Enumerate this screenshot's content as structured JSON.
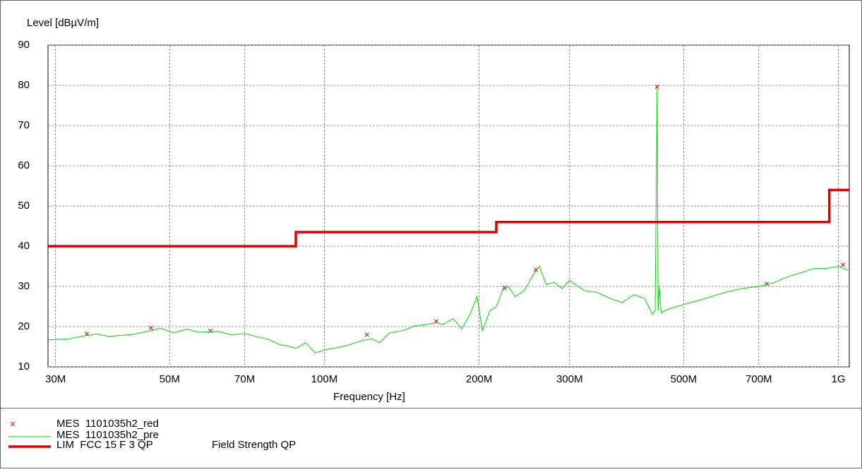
{
  "chart_data": {
    "type": "line",
    "y_label": "Level [dBµV/m]",
    "x_label": "Frequency [Hz]",
    "x_log": true,
    "grid": true,
    "xlim": [
      29000000,
      1050000000
    ],
    "ylim": [
      10,
      90
    ],
    "yticks": [
      10,
      20,
      30,
      40,
      50,
      60,
      70,
      80,
      90
    ],
    "xticks": [
      {
        "value": 30000000,
        "label": "30M"
      },
      {
        "value": 50000000,
        "label": "50M"
      },
      {
        "value": 70000000,
        "label": "70M"
      },
      {
        "value": 100000000,
        "label": "100M"
      },
      {
        "value": 200000000,
        "label": "200M"
      },
      {
        "value": 300000000,
        "label": "300M"
      },
      {
        "value": 500000000,
        "label": "500M"
      },
      {
        "value": 700000000,
        "label": "700M"
      },
      {
        "value": 1000000000,
        "label": "1G"
      }
    ],
    "legend_note": "Field Strength QP",
    "series": [
      {
        "name": "MES  1101035h2_red",
        "color": "#e00000",
        "marker": "x",
        "x": [
          34500000,
          46000000,
          60000000,
          121000000,
          165000000,
          224000000,
          258000000,
          444000000,
          725000000,
          1021000000
        ],
        "values": [
          18,
          19.5,
          18.8,
          17.8,
          21.2,
          29.5,
          34,
          79.5,
          30.5,
          35.2
        ]
      },
      {
        "name": "MES  1101035h2_pre",
        "color": "#00d800",
        "marker": "line",
        "x": [
          29000000,
          32000000,
          34000000,
          36000000,
          38000000,
          42000000,
          46000000,
          48000000,
          51000000,
          54000000,
          57000000,
          62000000,
          66000000,
          70000000,
          74000000,
          78000000,
          82000000,
          85000000,
          88000000,
          92000000,
          96000000,
          100000000,
          106000000,
          112000000,
          118000000,
          124000000,
          128000000,
          134000000,
          142000000,
          150000000,
          158000000,
          165000000,
          170000000,
          178000000,
          185000000,
          192000000,
          198000000,
          203000000,
          210000000,
          216000000,
          222000000,
          228000000,
          235000000,
          245000000,
          255000000,
          262000000,
          270000000,
          280000000,
          290000000,
          300000000,
          320000000,
          340000000,
          360000000,
          380000000,
          400000000,
          420000000,
          435000000,
          440000000,
          444000000,
          446000000,
          448000000,
          452000000,
          470000000,
          500000000,
          550000000,
          600000000,
          650000000,
          700000000,
          750000000,
          800000000,
          850000000,
          900000000,
          950000000,
          1000000000,
          1045000000
        ],
        "values": [
          16.7,
          17,
          17.7,
          18.2,
          17.6,
          18,
          19,
          19.6,
          18.5,
          19.4,
          18.6,
          18.8,
          18,
          18.3,
          17.5,
          16.8,
          15.5,
          15.2,
          14.6,
          16,
          13.5,
          14.2,
          14.8,
          15.5,
          16.5,
          17,
          16,
          18.5,
          19,
          20.2,
          20.5,
          21,
          20.5,
          22,
          19.5,
          23,
          27.5,
          19,
          24,
          25,
          29,
          30,
          27.5,
          29,
          33,
          35,
          30.5,
          31,
          29.5,
          31.5,
          29,
          28.5,
          27,
          26,
          28,
          27,
          23,
          24,
          79.5,
          24,
          30,
          23.5,
          24.5,
          25.5,
          27,
          28.5,
          29.5,
          30,
          31,
          32.5,
          33.5,
          34.5,
          34.5,
          35,
          34
        ]
      },
      {
        "name": "LIM  FCC 15 F 3 QP",
        "color": "#e00000",
        "marker": "thick",
        "x": [
          29000000,
          88000000,
          88000000,
          216000000,
          216000000,
          960000000,
          960000000,
          1050000000
        ],
        "values": [
          40,
          40,
          43.5,
          43.5,
          46,
          46,
          54,
          54
        ]
      }
    ]
  }
}
